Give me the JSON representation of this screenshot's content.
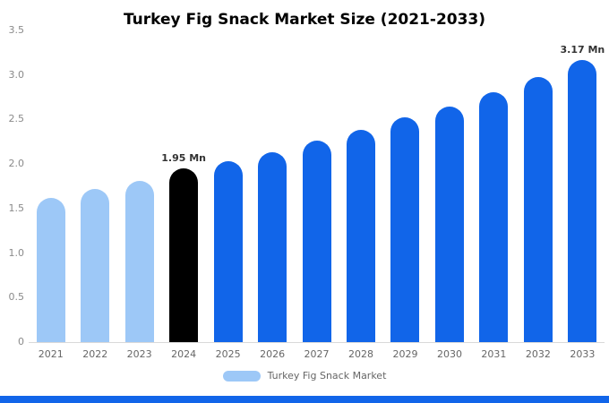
{
  "title": "Turkey Fig Snack Market Size (2021-2033)",
  "legend": {
    "label": "Turkey Fig Snack Market"
  },
  "colors": {
    "historical": "#9dc8f7",
    "base_year": "#000000",
    "forecast": "#1165e9",
    "footer": "#1165e9",
    "legend_swatch": "#9dc8f7"
  },
  "chart_data": {
    "type": "bar",
    "title": "Turkey Fig Snack Market Size (2021-2033)",
    "categories": [
      "2021",
      "2022",
      "2023",
      "2024",
      "2025",
      "2026",
      "2027",
      "2028",
      "2029",
      "2030",
      "2031",
      "2032",
      "2033"
    ],
    "values": [
      1.62,
      1.72,
      1.81,
      1.95,
      2.03,
      2.13,
      2.26,
      2.38,
      2.52,
      2.65,
      2.81,
      2.98,
      3.17
    ],
    "unit": "Mn",
    "xlabel": "",
    "ylabel": "",
    "ylim": [
      0,
      3.5
    ],
    "yticks": [
      0,
      0.5,
      1.0,
      1.5,
      2.0,
      2.5,
      3.0,
      3.5
    ],
    "ytick_labels": [
      "0",
      "0.5",
      "1.0",
      "1.5",
      "2.0",
      "2.5",
      "3.0",
      "3.5"
    ],
    "bar_color_keys": [
      "historical",
      "historical",
      "historical",
      "base_year",
      "forecast",
      "forecast",
      "forecast",
      "forecast",
      "forecast",
      "forecast",
      "forecast",
      "forecast",
      "forecast"
    ],
    "annotations": [
      {
        "category": "2024",
        "text": "1.95 Mn"
      },
      {
        "category": "2033",
        "text": "3.17 Mn"
      }
    ],
    "grid": false,
    "legend_position": "bottom",
    "legend_entries": [
      "Turkey Fig Snack Market"
    ]
  }
}
